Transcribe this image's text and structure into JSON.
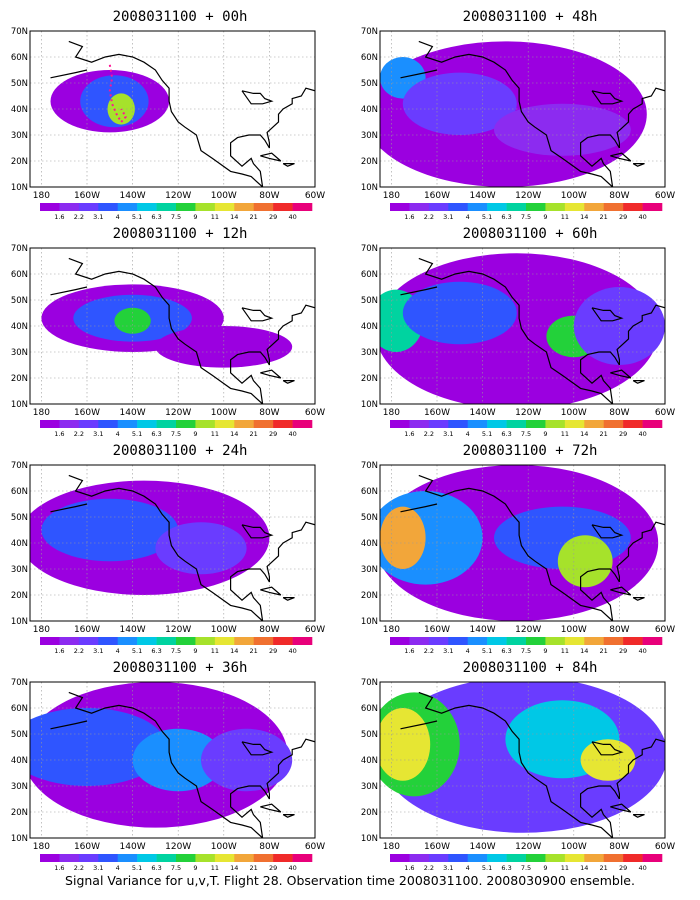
{
  "caption": "Signal Variance for u,v,T. Flight 28. Observation time 2008031100. 2008030900 ensemble.",
  "axes": {
    "lat_labels": [
      "70N",
      "60N",
      "50N",
      "40N",
      "30N",
      "20N",
      "10N"
    ],
    "lon_labels": [
      "180",
      "160W",
      "140W",
      "120W",
      "100W",
      "80W",
      "60W"
    ]
  },
  "colorbar": {
    "labels": [
      "1.6",
      "2.2",
      "3.1",
      "4",
      "5.1",
      "6.3",
      "7.5",
      "9",
      "11",
      "14",
      "21",
      "29",
      "40"
    ],
    "colors": [
      "#9b00e0",
      "#8c2bf0",
      "#6a3cff",
      "#2f55ff",
      "#1a8fff",
      "#00c8e6",
      "#00d3a0",
      "#23d13a",
      "#a6e22b",
      "#e6e633",
      "#f2a63a",
      "#f07030",
      "#f02a2a",
      "#e8007a"
    ]
  },
  "panels": [
    {
      "id": "00h",
      "title": "2008031100 + 00h"
    },
    {
      "id": "48h",
      "title": "2008031100 + 48h"
    },
    {
      "id": "12h",
      "title": "2008031100 + 12h"
    },
    {
      "id": "60h",
      "title": "2008031100 + 60h"
    },
    {
      "id": "24h",
      "title": "2008031100 + 24h"
    },
    {
      "id": "72h",
      "title": "2008031100 + 72h"
    },
    {
      "id": "36h",
      "title": "2008031100 + 36h"
    },
    {
      "id": "84h",
      "title": "2008031100 + 84h"
    }
  ]
}
